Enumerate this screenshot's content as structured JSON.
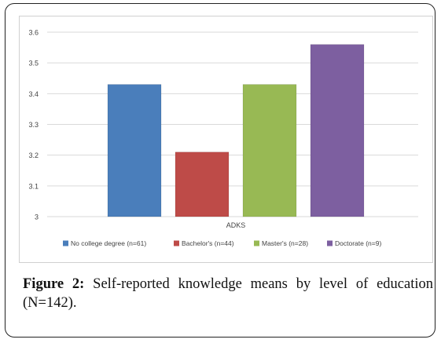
{
  "caption": {
    "label": "Figure 2:",
    "text": "Self-reported knowledge means by level of education (N=142)."
  },
  "chart_data": {
    "type": "bar",
    "categories": [
      "ADKS"
    ],
    "series": [
      {
        "name": "No college degree (n=61)",
        "values": [
          3.43
        ],
        "color": "#4a7ebb"
      },
      {
        "name": "Bachelor's (n=44)",
        "values": [
          3.21
        ],
        "color": "#be4b48"
      },
      {
        "name": "Master's (n=28)",
        "values": [
          3.43
        ],
        "color": "#98b954"
      },
      {
        "name": "Doctorate (n=9)",
        "values": [
          3.56
        ],
        "color": "#7d5fa0"
      }
    ],
    "ylim": [
      3,
      3.6
    ],
    "yticks": [
      "3",
      "3.1",
      "3.2",
      "3.3",
      "3.4",
      "3.5",
      "3.6"
    ],
    "xlabel": "",
    "ylabel": "",
    "title": "",
    "grid": true,
    "legend": "bottom"
  }
}
